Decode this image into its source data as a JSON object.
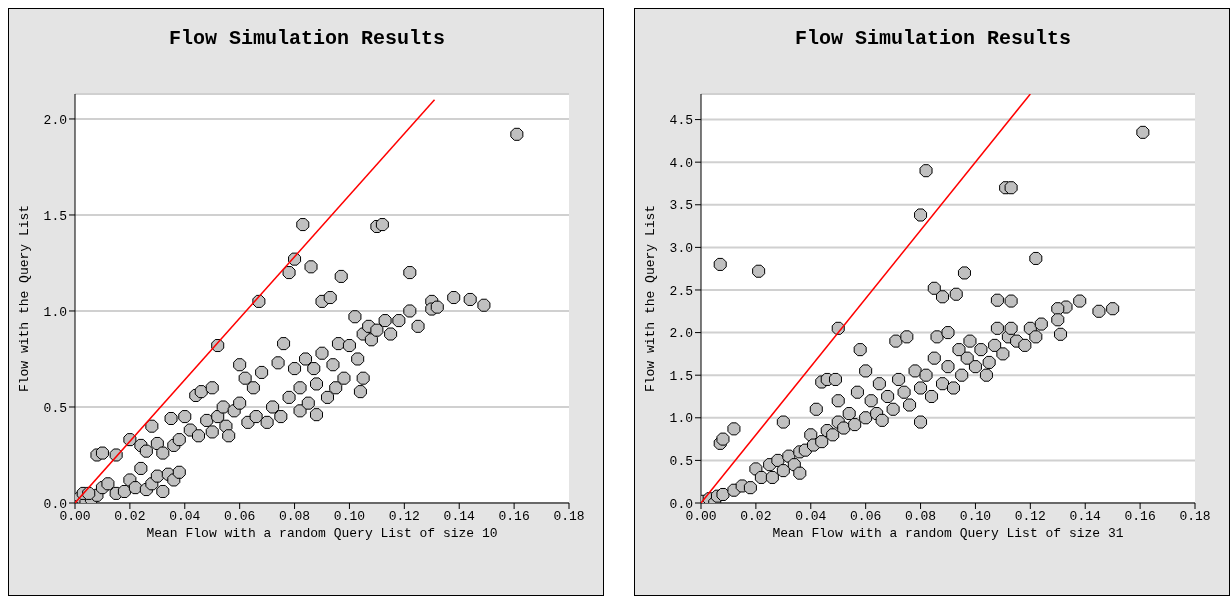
{
  "chart_data": [
    {
      "type": "scatter",
      "title": "Flow Simulation Results",
      "xlabel": "Mean Flow with a random Query List of size 10",
      "ylabel": "Flow with the Query List",
      "xlim": [
        0,
        0.18
      ],
      "xticks": [
        {
          "value": 0,
          "label": "0.00"
        },
        {
          "value": 0.02,
          "label": "0.02"
        },
        {
          "value": 0.04,
          "label": "0.04"
        },
        {
          "value": 0.06,
          "label": "0.06"
        },
        {
          "value": 0.08,
          "label": "0.08"
        },
        {
          "value": 0.1,
          "label": "0.10"
        },
        {
          "value": 0.12,
          "label": "0.12"
        },
        {
          "value": 0.14,
          "label": "0.14"
        },
        {
          "value": 0.16,
          "label": "0.16"
        },
        {
          "value": 0.18,
          "label": "0.18"
        }
      ],
      "ylim": [
        0,
        2.13
      ],
      "yticks": [
        {
          "value": 0,
          "label": "0.0"
        },
        {
          "value": 0.5,
          "label": "0.5"
        },
        {
          "value": 1,
          "label": "1.0"
        },
        {
          "value": 1.5,
          "label": "1.5"
        },
        {
          "value": 2,
          "label": "2.0"
        }
      ],
      "grid": "y",
      "series": [
        {
          "marker": "circle",
          "color": "#c0c0c0",
          "x": [
            0.002,
            0.004,
            0.006,
            0.008,
            0.003,
            0.008,
            0.01,
            0.015,
            0.02,
            0.024,
            0.026,
            0.028,
            0.03,
            0.032,
            0.035,
            0.036,
            0.038,
            0.04,
            0.042,
            0.044,
            0.045,
            0.046,
            0.048,
            0.05,
            0.05,
            0.052,
            0.052,
            0.054,
            0.055,
            0.056,
            0.058,
            0.06,
            0.06,
            0.062,
            0.063,
            0.065,
            0.066,
            0.067,
            0.068,
            0.07,
            0.072,
            0.074,
            0.075,
            0.076,
            0.078,
            0.078,
            0.08,
            0.08,
            0.082,
            0.082,
            0.083,
            0.084,
            0.085,
            0.086,
            0.087,
            0.088,
            0.088,
            0.09,
            0.09,
            0.092,
            0.093,
            0.094,
            0.095,
            0.096,
            0.097,
            0.098,
            0.1,
            0.102,
            0.103,
            0.104,
            0.105,
            0.105,
            0.107,
            0.108,
            0.11,
            0.11,
            0.112,
            0.113,
            0.115,
            0.118,
            0.122,
            0.122,
            0.125,
            0.13,
            0.13,
            0.132,
            0.138,
            0.144,
            0.149,
            0.161,
            0.005,
            0.01,
            0.012,
            0.015,
            0.018,
            0.02,
            0.022,
            0.024,
            0.026,
            0.028,
            0.03,
            0.032,
            0.034,
            0.036,
            0.038
          ],
          "values": [
            0.03,
            0.0,
            0.02,
            0.04,
            0.05,
            0.25,
            0.26,
            0.25,
            0.33,
            0.3,
            0.27,
            0.4,
            0.31,
            0.26,
            0.44,
            0.3,
            0.33,
            0.45,
            0.38,
            0.56,
            0.35,
            0.58,
            0.43,
            0.6,
            0.37,
            0.82,
            0.45,
            0.5,
            0.4,
            0.35,
            0.48,
            0.52,
            0.72,
            0.65,
            0.42,
            0.6,
            0.45,
            1.05,
            0.68,
            0.42,
            0.5,
            0.73,
            0.45,
            0.83,
            0.55,
            1.2,
            1.27,
            0.7,
            0.6,
            0.48,
            1.45,
            0.75,
            0.52,
            1.23,
            0.7,
            0.62,
            0.46,
            0.78,
            1.05,
            0.55,
            1.07,
            0.72,
            0.6,
            0.83,
            1.18,
            0.65,
            0.82,
            0.97,
            0.75,
            0.58,
            0.65,
            0.88,
            0.92,
            0.85,
            1.44,
            0.9,
            1.45,
            0.95,
            0.88,
            0.95,
            1.2,
            1.0,
            0.92,
            1.05,
            1.01,
            1.02,
            1.07,
            1.06,
            1.03,
            1.92,
            0.05,
            0.08,
            0.1,
            0.05,
            0.06,
            0.12,
            0.08,
            0.18,
            0.07,
            0.1,
            0.14,
            0.06,
            0.15,
            0.12,
            0.16
          ]
        },
        {
          "type": "line",
          "color": "#ff0000",
          "x": [
            0,
            0.131
          ],
          "values": [
            0,
            2.1
          ]
        }
      ]
    },
    {
      "type": "scatter",
      "title": "Flow Simulation Results",
      "xlabel": "Mean Flow with a random Query List of size 31",
      "ylabel": "Flow with the Query List",
      "xlim": [
        0,
        0.18
      ],
      "xticks": [
        {
          "value": 0,
          "label": "0.00"
        },
        {
          "value": 0.02,
          "label": "0.02"
        },
        {
          "value": 0.04,
          "label": "0.04"
        },
        {
          "value": 0.06,
          "label": "0.06"
        },
        {
          "value": 0.08,
          "label": "0.08"
        },
        {
          "value": 0.1,
          "label": "0.10"
        },
        {
          "value": 0.12,
          "label": "0.12"
        },
        {
          "value": 0.14,
          "label": "0.14"
        },
        {
          "value": 0.16,
          "label": "0.16"
        },
        {
          "value": 0.18,
          "label": "0.18"
        }
      ],
      "ylim": [
        0,
        4.8
      ],
      "yticks": [
        {
          "value": 0,
          "label": "0.0"
        },
        {
          "value": 0.5,
          "label": "0.5"
        },
        {
          "value": 1,
          "label": "1.0"
        },
        {
          "value": 1.5,
          "label": "1.5"
        },
        {
          "value": 2,
          "label": "2.0"
        },
        {
          "value": 2.5,
          "label": "2.5"
        },
        {
          "value": 3,
          "label": "3.0"
        },
        {
          "value": 3.5,
          "label": "3.5"
        },
        {
          "value": 4,
          "label": "4.0"
        },
        {
          "value": 4.5,
          "label": "4.5"
        }
      ],
      "grid": "y",
      "series": [
        {
          "marker": "circle",
          "color": "#c0c0c0",
          "x": [
            0.001,
            0.003,
            0.005,
            0.006,
            0.008,
            0.007,
            0.008,
            0.012,
            0.007,
            0.021,
            0.03,
            0.05,
            0.08,
            0.082,
            0.111,
            0.113,
            0.161,
            0.085,
            0.088,
            0.093,
            0.096,
            0.108,
            0.113,
            0.122,
            0.133,
            0.138,
            0.145,
            0.15,
            0.13,
            0.012,
            0.015,
            0.018,
            0.02,
            0.022,
            0.025,
            0.026,
            0.028,
            0.03,
            0.032,
            0.034,
            0.036,
            0.036,
            0.038,
            0.04,
            0.041,
            0.042,
            0.044,
            0.044,
            0.046,
            0.046,
            0.048,
            0.049,
            0.05,
            0.05,
            0.052,
            0.054,
            0.056,
            0.057,
            0.058,
            0.06,
            0.06,
            0.062,
            0.064,
            0.065,
            0.066,
            0.068,
            0.07,
            0.071,
            0.072,
            0.074,
            0.075,
            0.076,
            0.078,
            0.08,
            0.08,
            0.082,
            0.084,
            0.085,
            0.086,
            0.088,
            0.09,
            0.09,
            0.092,
            0.094,
            0.095,
            0.097,
            0.098,
            0.1,
            0.102,
            0.104,
            0.105,
            0.107,
            0.108,
            0.11,
            0.112,
            0.113,
            0.115,
            0.118,
            0.12,
            0.122,
            0.124,
            0.13,
            0.131
          ],
          "values": [
            0.02,
            0.05,
            0.0,
            0.08,
            0.1,
            0.7,
            0.75,
            0.87,
            2.8,
            2.72,
            0.95,
            2.05,
            3.38,
            3.9,
            3.7,
            3.7,
            4.35,
            2.52,
            2.42,
            2.45,
            2.7,
            2.38,
            2.37,
            2.87,
            2.3,
            2.37,
            2.25,
            2.28,
            2.28,
            0.15,
            0.2,
            0.18,
            0.4,
            0.3,
            0.45,
            0.3,
            0.5,
            0.38,
            0.55,
            0.45,
            0.6,
            0.35,
            0.62,
            0.8,
            0.68,
            1.1,
            0.72,
            1.42,
            1.45,
            0.85,
            0.8,
            1.45,
            0.95,
            1.2,
            0.88,
            1.05,
            0.92,
            1.3,
            1.8,
            1.0,
            1.55,
            1.2,
            1.05,
            1.4,
            0.97,
            1.25,
            1.1,
            1.9,
            1.45,
            1.3,
            1.95,
            1.15,
            1.55,
            0.95,
            1.35,
            1.5,
            1.25,
            1.7,
            1.95,
            1.4,
            1.6,
            2.0,
            1.35,
            1.8,
            1.5,
            1.7,
            1.9,
            1.6,
            1.8,
            1.5,
            1.65,
            1.85,
            2.05,
            1.75,
            1.95,
            2.05,
            1.9,
            1.85,
            2.05,
            1.95,
            2.1,
            2.15,
            1.98
          ]
        },
        {
          "type": "line",
          "color": "#ff0000",
          "x": [
            0,
            0.12
          ],
          "values": [
            0,
            4.8
          ]
        }
      ]
    }
  ]
}
